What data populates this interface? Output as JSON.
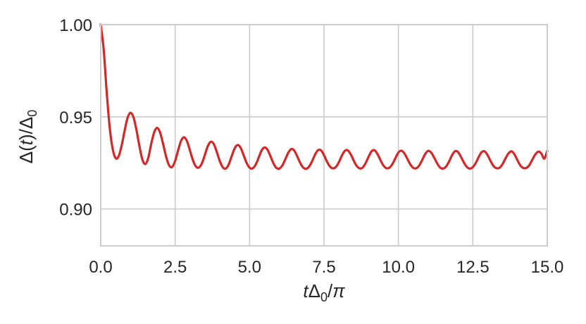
{
  "chart_data": {
    "type": "line",
    "title": "",
    "xlabel": "tΔ0/π",
    "ylabel": "Δ(t)/Δ0",
    "xlim": [
      0.0,
      15.0
    ],
    "ylim": [
      0.88,
      1.0
    ],
    "xticks": [
      0.0,
      2.5,
      5.0,
      7.5,
      10.0,
      12.5,
      15.0
    ],
    "xtick_labels": [
      "0.0",
      "2.5",
      "5.0",
      "7.5",
      "10.0",
      "12.5",
      "15.0"
    ],
    "yticks": [
      0.9,
      0.95,
      1.0
    ],
    "ytick_labels": [
      "0.90",
      "0.95",
      "1.00"
    ],
    "grid": true,
    "series": [
      {
        "color": "#d62728",
        "x": [
          0.0,
          0.1,
          0.2,
          0.3,
          0.4,
          0.5,
          0.6,
          0.7,
          0.8,
          0.9,
          1.0,
          1.1,
          1.2,
          1.3,
          1.4,
          1.5,
          1.6,
          1.7,
          1.8,
          1.9,
          2.0,
          2.1,
          2.2,
          2.3,
          2.4,
          2.5,
          2.6,
          2.7,
          2.8,
          2.9,
          3.0,
          3.1,
          3.2,
          3.3,
          3.4,
          3.5,
          3.6,
          3.7,
          3.8,
          3.9,
          4.0,
          4.1,
          4.2,
          4.3,
          4.4,
          4.5,
          4.6,
          4.7,
          4.8,
          4.9,
          5.0,
          5.1,
          5.2,
          5.3,
          5.4,
          5.5,
          5.6,
          5.7,
          5.8,
          5.9,
          6.0,
          6.1,
          6.2,
          6.3,
          6.4,
          6.5,
          6.6,
          6.7,
          6.8,
          6.9,
          7.0,
          7.1,
          7.2,
          7.3,
          7.4,
          7.5,
          7.6,
          7.7,
          7.8,
          7.9,
          8.0,
          8.1,
          8.2,
          8.3,
          8.4,
          8.5,
          8.6,
          8.7,
          8.8,
          8.9,
          9.0,
          9.1,
          9.2,
          9.3,
          9.4,
          9.5,
          9.6,
          9.7,
          9.8,
          9.9,
          10.0,
          10.1,
          10.2,
          10.3,
          10.4,
          10.5,
          10.6,
          10.7,
          10.8,
          10.9,
          11.0,
          11.1,
          11.2,
          11.3,
          11.4,
          11.5,
          11.6,
          11.7,
          11.8,
          11.9,
          12.0,
          12.1,
          12.2,
          12.3,
          12.4,
          12.5,
          12.6,
          12.7,
          12.8,
          12.9,
          13.0,
          13.1,
          13.2,
          13.3,
          13.4,
          13.5,
          13.6,
          13.7,
          13.8,
          13.9,
          14.0,
          14.1,
          14.2,
          14.3,
          14.4,
          14.5,
          14.6,
          14.7,
          14.8,
          14.9,
          15.0
        ],
        "y": [
          1.0,
          0.9865,
          0.9636,
          0.9445,
          0.9327,
          0.9276,
          0.9285,
          0.9342,
          0.9422,
          0.9493,
          0.9522,
          0.9498,
          0.9429,
          0.9341,
          0.9268,
          0.9244,
          0.9279,
          0.9356,
          0.9418,
          0.944,
          0.9412,
          0.935,
          0.9282,
          0.9236,
          0.9228,
          0.9261,
          0.9318,
          0.937,
          0.9389,
          0.9367,
          0.9316,
          0.9263,
          0.923,
          0.9225,
          0.9248,
          0.9294,
          0.9342,
          0.9365,
          0.9352,
          0.9309,
          0.926,
          0.9226,
          0.9219,
          0.9242,
          0.9287,
          0.9329,
          0.9347,
          0.9332,
          0.9292,
          0.925,
          0.9224,
          0.922,
          0.9239,
          0.9276,
          0.9316,
          0.9334,
          0.9322,
          0.9287,
          0.9248,
          0.9223,
          0.9219,
          0.9236,
          0.9269,
          0.9305,
          0.9325,
          0.9317,
          0.9286,
          0.925,
          0.9225,
          0.9218,
          0.923,
          0.9259,
          0.9295,
          0.9319,
          0.9318,
          0.9292,
          0.9257,
          0.923,
          0.922,
          0.9228,
          0.9254,
          0.9289,
          0.9315,
          0.9318,
          0.9296,
          0.9262,
          0.9233,
          0.922,
          0.9225,
          0.9249,
          0.9284,
          0.9313,
          0.9318,
          0.9297,
          0.9264,
          0.9235,
          0.9221,
          0.9224,
          0.9244,
          0.9276,
          0.9306,
          0.9316,
          0.9302,
          0.9272,
          0.9242,
          0.9223,
          0.9221,
          0.9236,
          0.9266,
          0.9298,
          0.9315,
          0.9306,
          0.9279,
          0.9248,
          0.9225,
          0.9219,
          0.923,
          0.9257,
          0.9291,
          0.9313,
          0.9309,
          0.9283,
          0.9252,
          0.9228,
          0.9219,
          0.9227,
          0.925,
          0.9283,
          0.9309,
          0.9312,
          0.9291,
          0.9259,
          0.9232,
          0.9221,
          0.9224,
          0.9244,
          0.9275,
          0.9302,
          0.9313,
          0.9296,
          0.9264,
          0.9235,
          0.9222,
          0.9223,
          0.9238,
          0.9268,
          0.9296,
          0.9311,
          0.9301,
          0.9273,
          0.9315
        ]
      }
    ]
  }
}
